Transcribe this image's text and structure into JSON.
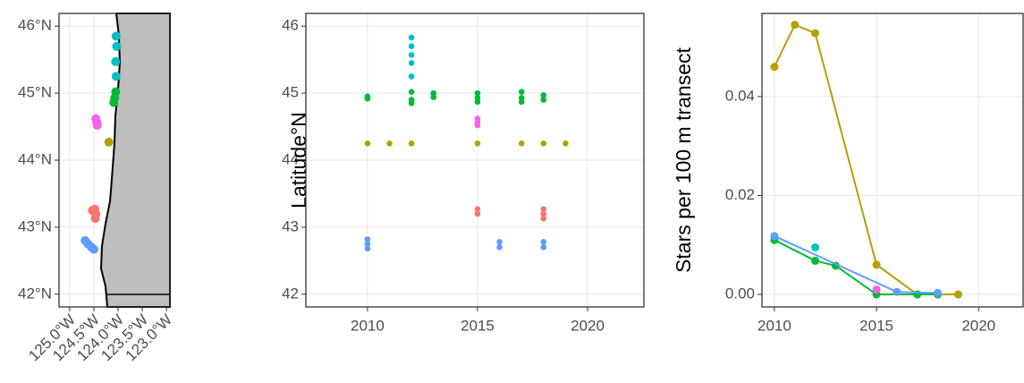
{
  "chart_data": [
    {
      "type": "map",
      "xlim": [
        -125.22,
        -122.93
      ],
      "ylim": [
        41.81,
        46.19
      ],
      "xticks": [
        {
          "value": -125,
          "label": "125.0°W"
        },
        {
          "value": -124.5,
          "label": "124.5°W"
        },
        {
          "value": -124,
          "label": "124.0°W"
        },
        {
          "value": -123.5,
          "label": "123.5°W"
        },
        {
          "value": -123,
          "label": "123.0°W"
        }
      ],
      "yticks": [
        {
          "value": 42,
          "label": "42°N"
        },
        {
          "value": 43,
          "label": "43°N"
        },
        {
          "value": 44,
          "label": "44°N"
        },
        {
          "value": 45,
          "label": "45°N"
        },
        {
          "value": 46,
          "label": "46°N"
        }
      ],
      "grid": true,
      "series": [
        {
          "color": "#00BFC4",
          "x": [
            -124.04,
            -124.03,
            -124.05,
            -124.04
          ],
          "y": [
            45.85,
            45.7,
            45.47,
            45.25
          ]
        },
        {
          "color": "#00BA38",
          "x": [
            -124.05,
            -124.07,
            -124.09
          ],
          "y": [
            45.02,
            44.93,
            44.86
          ]
        },
        {
          "color": "#F564E3",
          "x": [
            -124.46,
            -124.44,
            -124.43
          ],
          "y": [
            44.62,
            44.57,
            44.52
          ]
        },
        {
          "color": "#B79F00",
          "x": [
            -124.19
          ],
          "y": [
            44.27
          ]
        },
        {
          "color": "#F8766D",
          "x": [
            -124.53,
            -124.48,
            -124.46,
            -124.47
          ],
          "y": [
            43.25,
            43.27,
            43.2,
            43.13
          ]
        },
        {
          "color": "#619CFF",
          "x": [
            -124.68,
            -124.62,
            -124.55,
            -124.5
          ],
          "y": [
            42.8,
            42.75,
            42.7,
            42.67
          ]
        }
      ]
    },
    {
      "type": "scatter",
      "ylabel": "Latitude°N",
      "xlim": [
        2007.2,
        2022.56
      ],
      "ylim": [
        41.81,
        46.19
      ],
      "xticks": [
        2010,
        2015,
        2020
      ],
      "yticks": [
        42,
        43,
        44,
        45,
        46
      ],
      "grid": true,
      "series": [
        {
          "color": "#00BA38",
          "x": [
            2010,
            2010,
            2012,
            2012,
            2012,
            2013,
            2013,
            2015,
            2015,
            2015,
            2017,
            2017,
            2017,
            2018,
            2018
          ],
          "y": [
            44.95,
            44.92,
            45.02,
            44.9,
            44.85,
            45.0,
            44.94,
            45.0,
            44.93,
            44.87,
            45.02,
            44.93,
            44.87,
            44.97,
            44.9
          ]
        },
        {
          "color": "#B79F00",
          "x": [
            2010,
            2011,
            2012,
            2015,
            2017,
            2018,
            2019
          ],
          "y": [
            44.25,
            44.25,
            44.25,
            44.25,
            44.25,
            44.25,
            44.25
          ]
        },
        {
          "color": "#00BFC4",
          "x": [
            2012,
            2012,
            2012,
            2012,
            2012
          ],
          "y": [
            45.83,
            45.7,
            45.57,
            45.45,
            45.25
          ]
        },
        {
          "color": "#F564E3",
          "x": [
            2015,
            2015,
            2015
          ],
          "y": [
            44.62,
            44.57,
            44.52
          ]
        },
        {
          "color": "#F8766D",
          "x": [
            2015,
            2015,
            2018,
            2018,
            2018
          ],
          "y": [
            43.27,
            43.2,
            43.27,
            43.2,
            43.13
          ]
        },
        {
          "color": "#619CFF",
          "x": [
            2010,
            2010,
            2010,
            2016,
            2016,
            2018,
            2018
          ],
          "y": [
            42.82,
            42.75,
            42.68,
            42.78,
            42.7,
            42.78,
            42.7
          ]
        }
      ]
    },
    {
      "type": "line",
      "ylabel": "Stars per 100 m transect",
      "xlim": [
        2009.39,
        2022.18
      ],
      "ylim": [
        -0.00253,
        0.0568
      ],
      "xticks": [
        2010,
        2015,
        2020
      ],
      "yticks": [
        {
          "value": 0,
          "label": "0.00"
        },
        0.02,
        0.04
      ],
      "grid": true,
      "series": [
        {
          "color": "#B79F00",
          "x": [
            2010,
            2011,
            2012,
            2015,
            2017,
            2019
          ],
          "y": [
            0.046,
            0.0545,
            0.0528,
            0.006,
            0,
            0
          ]
        },
        {
          "color": "#00BA38",
          "x": [
            2010,
            2012,
            2013,
            2015,
            2017,
            2018
          ],
          "y": [
            0.011,
            0.0068,
            0.0058,
            0,
            0,
            0
          ]
        },
        {
          "color": "#619CFF",
          "x": [
            2010,
            2016,
            2018
          ],
          "y": [
            0.0118,
            0.0005,
            0.0003
          ]
        },
        {
          "color": "#00BFC4",
          "x": [
            2012
          ],
          "y": [
            0.0095
          ]
        },
        {
          "color": "#F564E3",
          "x": [
            2015
          ],
          "y": [
            0.001
          ]
        }
      ]
    }
  ]
}
